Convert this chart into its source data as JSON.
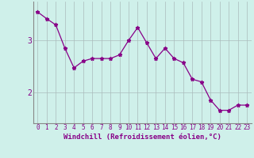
{
  "x": [
    0,
    1,
    2,
    3,
    4,
    5,
    6,
    7,
    8,
    9,
    10,
    11,
    12,
    13,
    14,
    15,
    16,
    17,
    18,
    19,
    20,
    21,
    22,
    23
  ],
  "y": [
    3.55,
    3.42,
    3.3,
    2.85,
    2.47,
    2.6,
    2.65,
    2.65,
    2.65,
    2.72,
    3.0,
    3.25,
    2.95,
    2.65,
    2.85,
    2.65,
    2.57,
    2.25,
    2.2,
    1.85,
    1.65,
    1.65,
    1.75,
    1.75
  ],
  "line_color": "#880088",
  "marker": "*",
  "background_color": "#cff0ea",
  "grid_color": "#aabbbb",
  "axis_color": "#880088",
  "xlabel": "Windchill (Refroidissement éolien,°C)",
  "ylabel": "",
  "yticks": [
    2,
    3
  ],
  "ylim": [
    1.4,
    3.75
  ],
  "xlim": [
    -0.5,
    23.5
  ],
  "title": "",
  "xlabel_color": "#880088",
  "font": "monospace",
  "tick_fontsize": 5.5,
  "xlabel_fontsize": 6.5
}
